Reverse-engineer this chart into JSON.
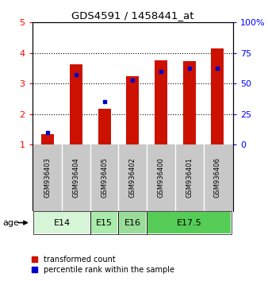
{
  "title": "GDS4591 / 1458441_at",
  "samples": [
    "GSM936403",
    "GSM936404",
    "GSM936405",
    "GSM936402",
    "GSM936400",
    "GSM936401",
    "GSM936406"
  ],
  "transformed_counts": [
    1.35,
    3.63,
    2.18,
    3.25,
    3.76,
    3.73,
    4.14
  ],
  "percentile_ranks": [
    10.0,
    57.5,
    35.0,
    52.5,
    60.0,
    62.5,
    62.5
  ],
  "age_groups": [
    {
      "label": "E14",
      "samples": [
        0,
        1
      ],
      "color": "#d6f5d6"
    },
    {
      "label": "E15",
      "samples": [
        2
      ],
      "color": "#aaeaaa"
    },
    {
      "label": "E16",
      "samples": [
        3
      ],
      "color": "#99dd99"
    },
    {
      "label": "E17.5",
      "samples": [
        4,
        5,
        6
      ],
      "color": "#55cc55"
    }
  ],
  "ylim_left": [
    1,
    5
  ],
  "ylim_right": [
    0,
    100
  ],
  "yticks_left": [
    1,
    2,
    3,
    4,
    5
  ],
  "ytick_labels_left": [
    "1",
    "2",
    "3",
    "4",
    "5"
  ],
  "yticks_right": [
    0,
    25,
    50,
    75,
    100
  ],
  "ytick_labels_right": [
    "0",
    "25",
    "50",
    "75",
    "100%"
  ],
  "bar_color": "#cc1100",
  "percentile_color": "#0000cc",
  "bar_width": 0.45,
  "bg_color_plot": "#ffffff",
  "bg_color_sample": "#c8c8c8",
  "legend_labels": [
    "transformed count",
    "percentile rank within the sample"
  ],
  "age_label": "age"
}
